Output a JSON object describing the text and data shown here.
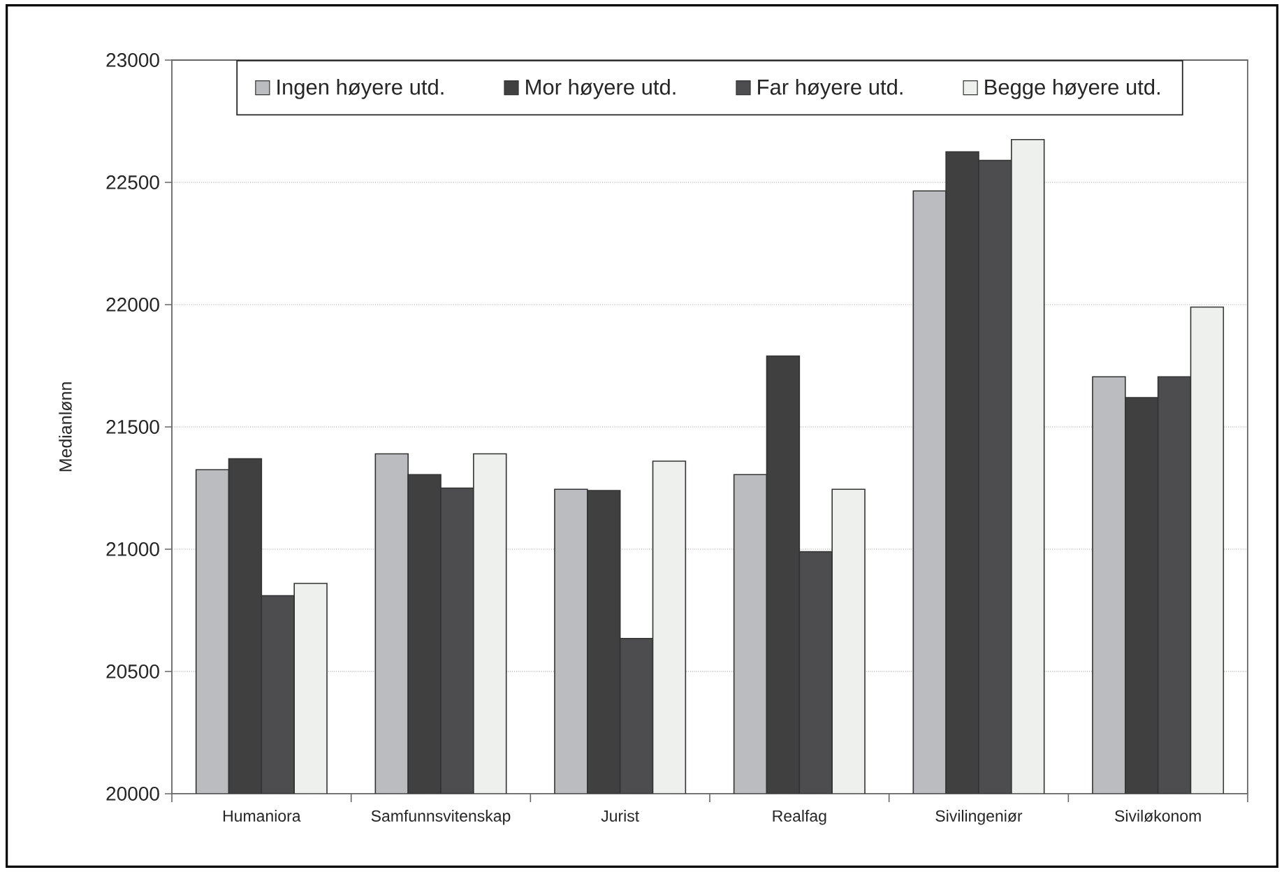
{
  "chart_data": {
    "type": "bar",
    "ylabel": "Medianlønn",
    "categories": [
      "Humaniora",
      "Samfunnsvitenskap",
      "Jurist",
      "Realfag",
      "Sivilingeniør",
      "Siviløkonom"
    ],
    "series": [
      {
        "name": "Ingen høyere utd.",
        "color": "#bbbcc0",
        "values": [
          21325,
          21390,
          21245,
          21305,
          22465,
          21705
        ]
      },
      {
        "name": "Mor høyere utd.",
        "color": "#404040",
        "values": [
          21370,
          21305,
          21240,
          21790,
          22625,
          21620
        ]
      },
      {
        "name": "Far høyere utd.",
        "color": "#4d4d4f",
        "values": [
          20810,
          21250,
          20635,
          20990,
          22590,
          21705
        ]
      },
      {
        "name": "Begge høyere utd.",
        "color": "#eef0ee",
        "values": [
          20860,
          21390,
          21360,
          21245,
          22675,
          21990
        ]
      }
    ],
    "ylim": [
      20000,
      23000
    ],
    "yticks": [
      20000,
      20500,
      21000,
      21500,
      22000,
      22500,
      23000
    ],
    "grid": "y",
    "legend": "top"
  }
}
